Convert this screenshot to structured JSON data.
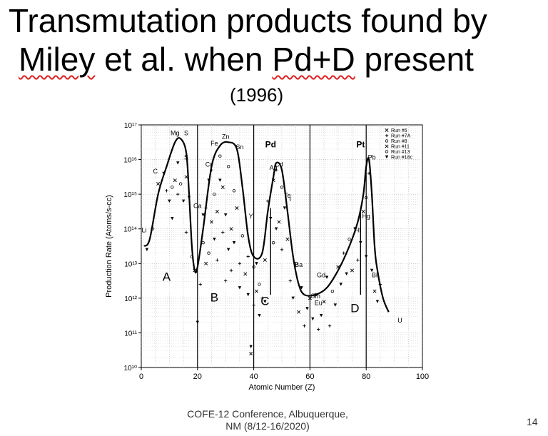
{
  "slide": {
    "title_line1": "Transmutation products found by",
    "title_line2_part1": "Miley",
    "title_line2_part2": " et al. when ",
    "title_line2_part3": "Pd+D",
    "title_line2_part4": " present",
    "year": "(1996)",
    "footer_line1": "COFE-12 Conference, Albuquerque,",
    "footer_line2": "NM (8/12-16/2020)",
    "page_number": "14"
  },
  "chart_data": {
    "type": "scatter",
    "title": "",
    "xlabel": "Atomic Number (Z)",
    "ylabel": "Production Rate (Atoms/s-cc)",
    "xlim": [
      0,
      100
    ],
    "ylim_log10": [
      10,
      17
    ],
    "log_y": true,
    "x_ticks": [
      "0",
      "20",
      "40",
      "60",
      "80",
      "100"
    ],
    "y_tick_labels": [
      "10¹⁰",
      "10¹¹",
      "10¹²",
      "10¹³",
      "10¹⁴",
      "10¹⁵",
      "10¹⁶",
      "10¹⁷"
    ],
    "grid": true,
    "legend_position": "top-right",
    "legend": [
      {
        "name": "Run #6",
        "marker": "x"
      },
      {
        "name": "Run #7A",
        "marker": "+"
      },
      {
        "name": "Run #8",
        "marker": "o"
      },
      {
        "name": "Run #11",
        "marker": "x"
      },
      {
        "name": "Run #13",
        "marker": "o"
      },
      {
        "name": "Run #18c",
        "marker": "v"
      }
    ],
    "envelope_curve": [
      [
        1,
        13.5
      ],
      [
        3,
        13.7
      ],
      [
        6,
        15.0
      ],
      [
        9,
        15.8
      ],
      [
        12,
        16.5
      ],
      [
        14,
        16.6
      ],
      [
        16,
        16.2
      ],
      [
        17,
        15.0
      ],
      [
        18,
        13.5
      ],
      [
        19,
        12.8
      ],
      [
        20,
        12.9
      ],
      [
        22,
        14.0
      ],
      [
        25,
        15.8
      ],
      [
        28,
        16.4
      ],
      [
        31,
        16.5
      ],
      [
        34,
        16.3
      ],
      [
        36,
        15.2
      ],
      [
        38,
        13.8
      ],
      [
        40,
        13.2
      ],
      [
        43,
        13.3
      ],
      [
        45,
        14.5
      ],
      [
        47,
        15.5
      ],
      [
        48,
        15.9
      ],
      [
        50,
        15.7
      ],
      [
        52,
        14.5
      ],
      [
        54,
        13.2
      ],
      [
        56,
        12.4
      ],
      [
        58,
        12.1
      ],
      [
        62,
        12.1
      ],
      [
        66,
        12.3
      ],
      [
        70,
        12.8
      ],
      [
        74,
        13.5
      ],
      [
        77,
        14.2
      ],
      [
        79,
        15.0
      ],
      [
        80,
        15.8
      ],
      [
        81,
        16.0
      ],
      [
        82,
        15.0
      ],
      [
        83,
        13.5
      ],
      [
        84,
        12.8
      ],
      [
        86,
        12.0
      ],
      [
        88,
        11.6
      ]
    ],
    "element_labels": [
      {
        "text": "Li",
        "z": 1,
        "log": 13.9
      },
      {
        "text": "C",
        "z": 5,
        "log": 15.6
      },
      {
        "text": "Mg",
        "z": 12,
        "log": 16.7
      },
      {
        "text": "S",
        "z": 16,
        "log": 16.7
      },
      {
        "text": "S",
        "z": 16,
        "log": 16.0
      },
      {
        "text": "Ca",
        "z": 20,
        "log": 14.6
      },
      {
        "text": "Cr",
        "z": 24,
        "log": 15.8
      },
      {
        "text": "Fe",
        "z": 26,
        "log": 16.4
      },
      {
        "text": "Zn",
        "z": 30,
        "log": 16.6
      },
      {
        "text": "Sn",
        "z": 35,
        "log": 16.3
      },
      {
        "text": "Y",
        "z": 39,
        "log": 14.3
      },
      {
        "text": "Ag",
        "z": 47,
        "log": 15.7
      },
      {
        "text": "Cd",
        "z": 49,
        "log": 15.8
      },
      {
        "text": "Te",
        "z": 52,
        "log": 14.9
      },
      {
        "text": "I",
        "z": 53,
        "log": 14.8
      },
      {
        "text": "Ba",
        "z": 56,
        "log": 12.9
      },
      {
        "text": "Sm",
        "z": 62,
        "log": 12.0
      },
      {
        "text": "Gd",
        "z": 64,
        "log": 12.6
      },
      {
        "text": "Eu",
        "z": 63,
        "log": 11.8
      },
      {
        "text": "Hf",
        "z": 77,
        "log": 13.9
      },
      {
        "text": "Hg",
        "z": 80,
        "log": 14.3
      },
      {
        "text": "Pb",
        "z": 82,
        "log": 16.0
      },
      {
        "text": "Bi",
        "z": 83,
        "log": 12.6
      },
      {
        "text": "U",
        "z": 92,
        "log": 11.3
      }
    ],
    "annotations": [
      {
        "text": "Pd",
        "z": 46,
        "log": 16.35
      },
      {
        "text": "Pt",
        "z": 78,
        "log": 16.35
      }
    ],
    "region_labels": [
      {
        "text": "A",
        "z": 9,
        "log": 12.5
      },
      {
        "text": "B",
        "z": 26,
        "log": 11.9
      },
      {
        "text": "C",
        "z": 44,
        "log": 11.8
      },
      {
        "text": "D",
        "z": 76,
        "log": 11.6
      }
    ],
    "vertical_lines": [
      20,
      40,
      60,
      80
    ],
    "marker_lines": [
      46,
      78
    ],
    "points": [
      [
        2,
        13.4,
        "v"
      ],
      [
        4,
        14.0,
        "o"
      ],
      [
        6,
        15.3,
        "x"
      ],
      [
        8,
        15.6,
        "v"
      ],
      [
        9,
        15.1,
        "+"
      ],
      [
        10,
        14.8,
        "v"
      ],
      [
        11,
        15.2,
        "o"
      ],
      [
        11,
        14.3,
        "v"
      ],
      [
        12,
        15.4,
        "x"
      ],
      [
        13,
        15.0,
        "+"
      ],
      [
        13,
        15.9,
        "v"
      ],
      [
        14,
        15.3,
        "o"
      ],
      [
        15,
        14.8,
        "v"
      ],
      [
        16,
        15.5,
        "x"
      ],
      [
        16,
        13.9,
        "+"
      ],
      [
        17,
        14.9,
        "v"
      ],
      [
        18,
        13.2,
        "o"
      ],
      [
        19,
        12.8,
        "x"
      ],
      [
        20,
        11.3,
        "v"
      ],
      [
        21,
        12.4,
        "+"
      ],
      [
        22,
        13.6,
        "o"
      ],
      [
        22,
        14.4,
        "v"
      ],
      [
        23,
        13.0,
        "x"
      ],
      [
        23,
        14.6,
        "+"
      ],
      [
        24,
        15.4,
        "v"
      ],
      [
        24,
        13.3,
        "o"
      ],
      [
        25,
        14.2,
        "x"
      ],
      [
        25,
        15.7,
        "+"
      ],
      [
        26,
        13.7,
        "v"
      ],
      [
        26,
        15.0,
        "o"
      ],
      [
        27,
        14.5,
        "x"
      ],
      [
        27,
        13.1,
        "+"
      ],
      [
        28,
        15.4,
        "v"
      ],
      [
        28,
        16.1,
        "o"
      ],
      [
        29,
        13.9,
        "+"
      ],
      [
        29,
        15.2,
        "x"
      ],
      [
        30,
        14.4,
        "v"
      ],
      [
        30,
        12.5,
        "+"
      ],
      [
        31,
        15.8,
        "o"
      ],
      [
        31,
        13.4,
        "v"
      ],
      [
        32,
        14.0,
        "x"
      ],
      [
        32,
        12.8,
        "+"
      ],
      [
        33,
        15.1,
        "o"
      ],
      [
        33,
        13.6,
        "v"
      ],
      [
        34,
        14.6,
        "x"
      ],
      [
        35,
        13.0,
        "+"
      ],
      [
        35,
        12.3,
        "v"
      ],
      [
        36,
        13.8,
        "o"
      ],
      [
        37,
        12.7,
        "x"
      ],
      [
        38,
        12.1,
        "v"
      ],
      [
        38,
        13.2,
        "+"
      ],
      [
        39,
        10.6,
        "v"
      ],
      [
        39,
        10.4,
        "x"
      ],
      [
        40,
        12.9,
        "o"
      ],
      [
        40,
        11.8,
        "+"
      ],
      [
        41,
        13.0,
        "v"
      ],
      [
        41,
        12.2,
        "x"
      ],
      [
        42,
        11.5,
        "v"
      ],
      [
        42,
        12.4,
        "o"
      ],
      [
        43,
        12.0,
        "+"
      ],
      [
        44,
        13.1,
        "x"
      ],
      [
        44,
        11.9,
        "v"
      ],
      [
        45,
        14.8,
        "+"
      ],
      [
        46,
        14.3,
        "v"
      ],
      [
        47,
        15.4,
        "x"
      ],
      [
        47,
        13.6,
        "o"
      ],
      [
        48,
        15.7,
        "+"
      ],
      [
        48,
        14.0,
        "v"
      ],
      [
        49,
        14.2,
        "x"
      ],
      [
        50,
        15.2,
        "o"
      ],
      [
        50,
        13.4,
        "+"
      ],
      [
        51,
        14.6,
        "v"
      ],
      [
        52,
        13.7,
        "x"
      ],
      [
        53,
        12.5,
        "+"
      ],
      [
        54,
        12.0,
        "v"
      ],
      [
        55,
        13.0,
        "o"
      ],
      [
        56,
        11.6,
        "x"
      ],
      [
        57,
        12.3,
        "v"
      ],
      [
        58,
        11.2,
        "+"
      ],
      [
        59,
        11.7,
        "v"
      ],
      [
        60,
        12.0,
        "x"
      ],
      [
        61,
        11.4,
        "v"
      ],
      [
        62,
        12.1,
        "o"
      ],
      [
        63,
        11.1,
        "+"
      ],
      [
        64,
        11.5,
        "v"
      ],
      [
        65,
        11.9,
        "x"
      ],
      [
        66,
        12.6,
        "v"
      ],
      [
        67,
        11.2,
        "+"
      ],
      [
        68,
        12.2,
        "o"
      ],
      [
        69,
        11.8,
        "v"
      ],
      [
        70,
        12.9,
        "x"
      ],
      [
        71,
        12.4,
        "v"
      ],
      [
        72,
        13.3,
        "+"
      ],
      [
        73,
        12.7,
        "v"
      ],
      [
        74,
        13.7,
        "o"
      ],
      [
        75,
        12.8,
        "x"
      ],
      [
        76,
        14.0,
        "v"
      ],
      [
        77,
        13.1,
        "+"
      ],
      [
        78,
        13.6,
        "v"
      ],
      [
        79,
        14.5,
        "x"
      ],
      [
        80,
        14.9,
        "o"
      ],
      [
        80,
        13.2,
        "v"
      ],
      [
        81,
        15.6,
        "+"
      ],
      [
        82,
        12.8,
        "v"
      ],
      [
        83,
        12.2,
        "x"
      ],
      [
        84,
        11.9,
        "v"
      ],
      [
        85,
        12.4,
        "+"
      ]
    ]
  }
}
